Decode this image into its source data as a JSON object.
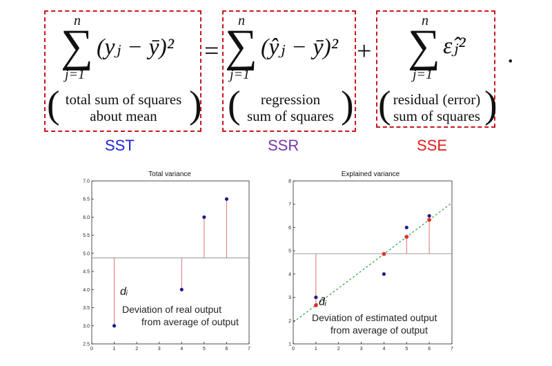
{
  "equation": {
    "sst": {
      "upper": "n",
      "lower": "j=1",
      "term": "(yⱼ − ȳ)²",
      "note_line1": "total sum of squares",
      "note_line2": "about mean",
      "tag": "SST"
    },
    "equals": "=",
    "ssr": {
      "upper": "n",
      "lower": "j=1",
      "term": "(ŷⱼ − ȳ)²",
      "note_line1": "regression",
      "note_line2": "sum of squares",
      "tag": "SSR"
    },
    "plus": "+",
    "sse": {
      "upper": "n",
      "lower": "j=1",
      "term": "ε̂ⱼ²",
      "note_line1": "residual (error)",
      "note_line2": "sum of squares",
      "tag": "SSE"
    },
    "period": "."
  },
  "colors": {
    "box": "#c8161d",
    "sst": "#1f1fd6",
    "ssr": "#7a35a8",
    "sse": "#e01b1b",
    "point_blue": "#1c1c8c",
    "point_red": "#e03030",
    "stem": "#e07070",
    "fit_line": "#3aa64a"
  },
  "chart_data": [
    {
      "type": "scatter",
      "title": "Total variance",
      "xlim": [
        0,
        7
      ],
      "ylim": [
        2.5,
        7.0
      ],
      "x_ticks": [
        0,
        1,
        2,
        3,
        4,
        5,
        6,
        7
      ],
      "y_ticks": [
        "2.5",
        "3.0",
        "3.5",
        "4.0",
        "4.5",
        "5.0",
        "5.5",
        "6.0",
        "6.5",
        "7.0"
      ],
      "mean": 4.875,
      "points": [
        {
          "x": 1,
          "y": 3.0
        },
        {
          "x": 4,
          "y": 4.0
        },
        {
          "x": 5,
          "y": 6.0
        },
        {
          "x": 6,
          "y": 6.5
        }
      ],
      "label_symbol": "dᵢ",
      "caption_line1": "Deviation of real output",
      "caption_line2": "from average of output"
    },
    {
      "type": "scatter",
      "title": "Explained variance",
      "xlim": [
        0,
        7
      ],
      "ylim": [
        1,
        8
      ],
      "x_ticks": [
        0,
        1,
        2,
        3,
        4,
        5,
        6,
        7
      ],
      "y_ticks": [
        "1",
        "2",
        "3",
        "4",
        "5",
        "6",
        "7",
        "8"
      ],
      "mean": 4.875,
      "points": [
        {
          "x": 1,
          "y": 3.0
        },
        {
          "x": 4,
          "y": 4.0
        },
        {
          "x": 5,
          "y": 6.0
        },
        {
          "x": 6,
          "y": 6.5
        }
      ],
      "fitted": [
        {
          "x": 1,
          "y": 2.66
        },
        {
          "x": 4,
          "y": 4.86
        },
        {
          "x": 5,
          "y": 5.6
        },
        {
          "x": 6,
          "y": 6.33
        }
      ],
      "fit_line": {
        "intercept": 1.93,
        "slope": 0.733
      },
      "label_symbol": "d̂ᵢ",
      "caption_line1": "Deviation of estimated output",
      "caption_line2": "from average of output"
    }
  ]
}
